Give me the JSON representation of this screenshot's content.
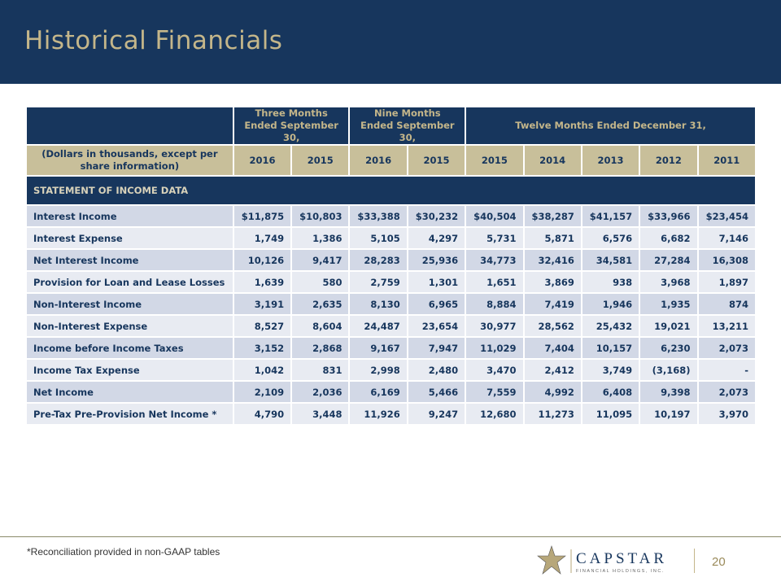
{
  "header": {
    "title": "Historical Financials"
  },
  "table": {
    "group_headers": [
      "Three Months Ended September 30,",
      "Nine Months Ended September 30,",
      "Twelve Months Ended December 31,"
    ],
    "units_label": "(Dollars in thousands, except per share information)",
    "years": [
      "2016",
      "2015",
      "2016",
      "2015",
      "2015",
      "2014",
      "2013",
      "2012",
      "2011"
    ],
    "section": "STATEMENT OF INCOME DATA",
    "rows": [
      {
        "label": "Interest Income",
        "values": [
          "$11,875",
          "$10,803",
          "$33,388",
          "$30,232",
          "$40,504",
          "$38,287",
          "$41,157",
          "$33,966",
          "$23,454"
        ]
      },
      {
        "label": "Interest Expense",
        "values": [
          "1,749",
          "1,386",
          "5,105",
          "4,297",
          "5,731",
          "5,871",
          "6,576",
          "6,682",
          "7,146"
        ]
      },
      {
        "label": "Net Interest Income",
        "values": [
          "10,126",
          "9,417",
          "28,283",
          "25,936",
          "34,773",
          "32,416",
          "34,581",
          "27,284",
          "16,308"
        ]
      },
      {
        "label": "Provision for Loan and Lease Losses",
        "values": [
          "1,639",
          "580",
          "2,759",
          "1,301",
          "1,651",
          "3,869",
          "938",
          "3,968",
          "1,897"
        ]
      },
      {
        "label": "Non-Interest Income",
        "values": [
          "3,191",
          "2,635",
          "8,130",
          "6,965",
          "8,884",
          "7,419",
          "1,946",
          "1,935",
          "874"
        ]
      },
      {
        "label": "Non-Interest Expense",
        "values": [
          "8,527",
          "8,604",
          "24,487",
          "23,654",
          "30,977",
          "28,562",
          "25,432",
          "19,021",
          "13,211"
        ]
      },
      {
        "label": "Income before Income Taxes",
        "values": [
          "3,152",
          "2,868",
          "9,167",
          "7,947",
          "11,029",
          "7,404",
          "10,157",
          "6,230",
          "2,073"
        ]
      },
      {
        "label": "Income Tax Expense",
        "values": [
          "1,042",
          "831",
          "2,998",
          "2,480",
          "3,470",
          "2,412",
          "3,749",
          "(3,168)",
          "-"
        ]
      },
      {
        "label": "Net Income",
        "values": [
          "2,109",
          "2,036",
          "6,169",
          "5,466",
          "7,559",
          "4,992",
          "6,408",
          "9,398",
          "2,073"
        ]
      },
      {
        "label": "Pre-Tax Pre-Provision Net Income *",
        "values": [
          "4,790",
          "3,448",
          "11,926",
          "9,247",
          "12,680",
          "11,273",
          "11,095",
          "10,197",
          "3,970"
        ]
      }
    ]
  },
  "footer": {
    "note": "*Reconciliation provided in non-GAAP tables",
    "logo_name": "CAPSTAR",
    "logo_sub": "FINANCIAL HOLDINGS, INC.",
    "page": "20"
  }
}
